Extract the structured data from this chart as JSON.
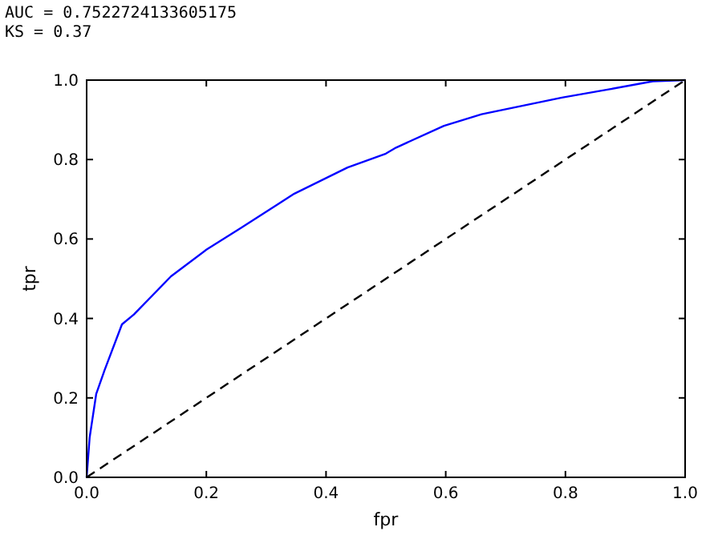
{
  "chart_data": {
    "type": "line",
    "xlabel": "fpr",
    "ylabel": "tpr",
    "annotations": [
      "AUC = 0.7522724133605175",
      "KS = 0.37"
    ],
    "xlim": [
      0,
      1
    ],
    "ylim": [
      0,
      1
    ],
    "xticks": [
      {
        "value": 0,
        "label": "0.0"
      },
      {
        "value": 0.2,
        "label": "0.2"
      },
      {
        "value": 0.4,
        "label": "0.4"
      },
      {
        "value": 0.6,
        "label": "0.6"
      },
      {
        "value": 0.8,
        "label": "0.8"
      },
      {
        "value": 1,
        "label": "1.0"
      }
    ],
    "yticks": [
      {
        "value": 0,
        "label": "0.0"
      },
      {
        "value": 0.2,
        "label": "0.2"
      },
      {
        "value": 0.4,
        "label": "0.4"
      },
      {
        "value": 0.6,
        "label": "0.6"
      },
      {
        "value": 0.8,
        "label": "0.8"
      },
      {
        "value": 1,
        "label": "1.0"
      }
    ],
    "grid": false,
    "marker": "none",
    "series": [
      {
        "color": "#0000ff",
        "line_style": "solid",
        "x": [
          0,
          0.005,
          0.016,
          0.03,
          0.059,
          0.079,
          0.141,
          0.2,
          0.257,
          0.347,
          0.436,
          0.5,
          0.517,
          0.597,
          0.66,
          0.794,
          0.874,
          0.946,
          1
        ],
        "values": [
          0,
          0.1,
          0.21,
          0.27,
          0.385,
          0.41,
          0.506,
          0.573,
          0.627,
          0.714,
          0.78,
          0.815,
          0.83,
          0.885,
          0.914,
          0.956,
          0.977,
          0.997,
          1
        ]
      },
      {
        "color": "#000000",
        "line_style": "dashed",
        "x": [
          0,
          1
        ],
        "values": [
          0,
          1
        ]
      }
    ]
  }
}
